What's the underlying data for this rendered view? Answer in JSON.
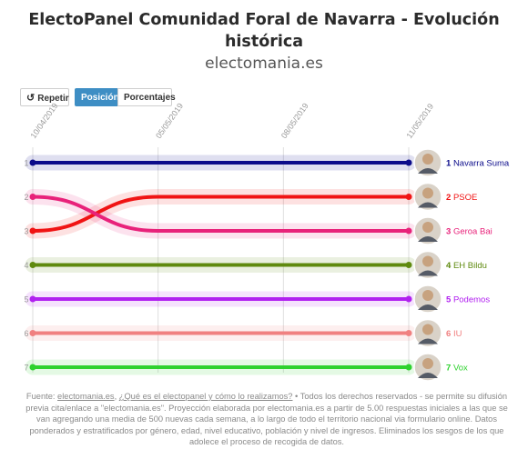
{
  "header": {
    "title_line1": "ElectoPanel Comunidad Foral de Navarra - Evolución",
    "title_line2": "histórica",
    "subtitle": "electomania.es"
  },
  "controls": {
    "replay_label": "Repetir",
    "position_label": "Posición",
    "percent_label": "Porcentajes"
  },
  "chart_data": {
    "type": "line",
    "x": [
      "10/04/2019",
      "05/05/2019",
      "08/05/2019",
      "11/05/2019"
    ],
    "y_kind": "rank",
    "ylim": [
      1,
      7
    ],
    "series": [
      {
        "name": "Navarra Suma",
        "color": "#0b0b8a",
        "values": [
          1,
          1,
          1,
          1
        ]
      },
      {
        "name": "PSOE",
        "color": "#f01414",
        "values": [
          3,
          2,
          2,
          2
        ]
      },
      {
        "name": "Geroa Bai",
        "color": "#e8227a",
        "values": [
          2,
          3,
          3,
          3
        ]
      },
      {
        "name": "EH Bildu",
        "color": "#5f8a0f",
        "values": [
          4,
          4,
          4,
          4
        ]
      },
      {
        "name": "Podemos",
        "color": "#b120f0",
        "values": [
          5,
          5,
          5,
          5
        ]
      },
      {
        "name": "IU",
        "color": "#f08080",
        "values": [
          6,
          6,
          6,
          6
        ]
      },
      {
        "name": "Vox",
        "color": "#2ed22e",
        "values": [
          7,
          7,
          7,
          7
        ]
      }
    ]
  },
  "footer": {
    "prefix": "Fuente: ",
    "link1": "electomania.es",
    "sep": ", ",
    "link2": "¿Qué es el electopanel y cómo lo realizamos?",
    "text": " • Todos los derechos reservados - se permite su difusión previa cita/enlace a \"electomania.es\". Proyección elaborada por electomania.es a partir de 5.00 respuestas iniciales a las que se van agregando una media de 500 nuevas cada semana, a lo largo de todo el territorio nacional via formulario online. Datos ponderados y estratificados por género, edad, nivel educativo, población y nivel de ingresos. Eliminados los sesgos de los que adolece el proceso de recogida de datos."
  }
}
